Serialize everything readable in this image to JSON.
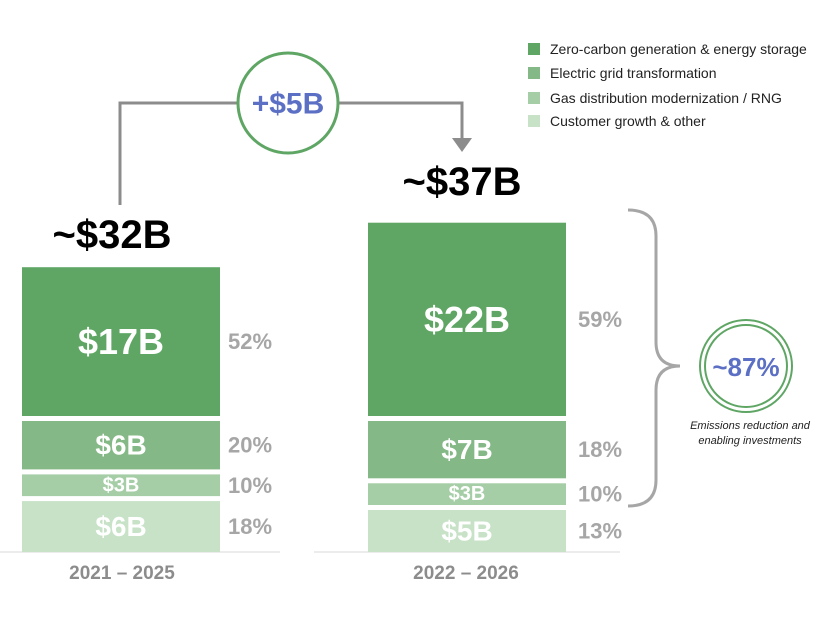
{
  "chart_data": {
    "type": "bar",
    "stacked": true,
    "unit": "$B",
    "categories": [
      "2021 – 2025",
      "2022 – 2026"
    ],
    "totals": [
      "~$32B",
      "~$37B"
    ],
    "series": [
      {
        "name": "Zero-carbon generation & energy storage",
        "color": "#5fa665",
        "values": [
          17,
          22
        ],
        "labels": [
          "$17B",
          "$22B"
        ],
        "percent_labels": [
          "52%",
          "59%"
        ]
      },
      {
        "name": "Electric grid transformation",
        "color": "#84b886",
        "values": [
          6,
          7
        ],
        "labels": [
          "$6B",
          "$7B"
        ],
        "percent_labels": [
          "20%",
          "18%"
        ]
      },
      {
        "name": "Gas distribution modernization / RNG",
        "color": "#a5cda6",
        "values": [
          3,
          3
        ],
        "labels": [
          "$3B",
          "$3B"
        ],
        "percent_labels": [
          "10%",
          "10%"
        ]
      },
      {
        "name": "Customer growth & other",
        "color": "#c7e2c7",
        "values": [
          6,
          5
        ],
        "labels": [
          "$6B",
          "$5B"
        ],
        "percent_labels": [
          "18%",
          "13%"
        ]
      }
    ],
    "annotations": {
      "increase_label": "+$5B",
      "bracket_share_label": "~87%",
      "bracket_note_lines": [
        "Emissions reduction and",
        "enabling investments"
      ]
    },
    "legend_position": "top-right",
    "grid": false
  },
  "colors": {
    "accent_text": "#5b6fc4",
    "circle_stroke": "#5fa665",
    "connector": "#8c8c8c",
    "percent_text": "#a6a6a6"
  }
}
